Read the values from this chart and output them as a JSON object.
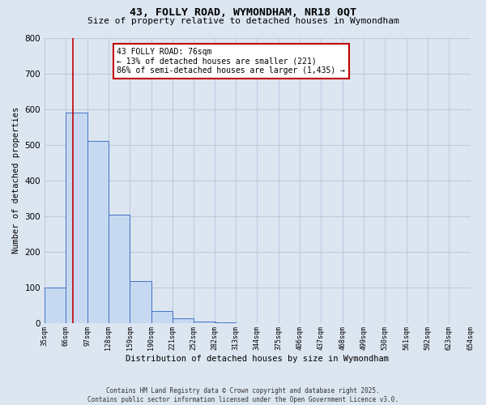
{
  "title_line1": "43, FOLLY ROAD, WYMONDHAM, NR18 0QT",
  "title_line2": "Size of property relative to detached houses in Wymondham",
  "xlabel": "Distribution of detached houses by size in Wymondham",
  "ylabel": "Number of detached properties",
  "footer_line1": "Contains HM Land Registry data © Crown copyright and database right 2025.",
  "footer_line2": "Contains public sector information licensed under the Open Government Licence v3.0.",
  "bin_edges": [
    35,
    66,
    97,
    128,
    159,
    190,
    221,
    252,
    282,
    313,
    344,
    375,
    406,
    437,
    468,
    499,
    530,
    561,
    592,
    623,
    654
  ],
  "bar_heights": [
    100,
    590,
    510,
    305,
    118,
    35,
    15,
    5,
    2,
    1,
    1,
    0,
    0,
    0,
    0,
    0,
    0,
    0,
    0,
    0
  ],
  "bar_color": "#c6d9f1",
  "bar_edge_color": "#4472c4",
  "grid_color": "#c0c8e0",
  "background_color": "#dce6f1",
  "property_size": 76,
  "vline_color": "#c00000",
  "annotation_text": "43 FOLLY ROAD: 76sqm\n← 13% of detached houses are smaller (221)\n86% of semi-detached houses are larger (1,435) →",
  "annotation_box_color": "#ffffff",
  "annotation_box_edge_color": "#c00000",
  "ylim": [
    0,
    800
  ],
  "yticks": [
    0,
    100,
    200,
    300,
    400,
    500,
    600,
    700,
    800
  ],
  "xlim": [
    35,
    654
  ]
}
